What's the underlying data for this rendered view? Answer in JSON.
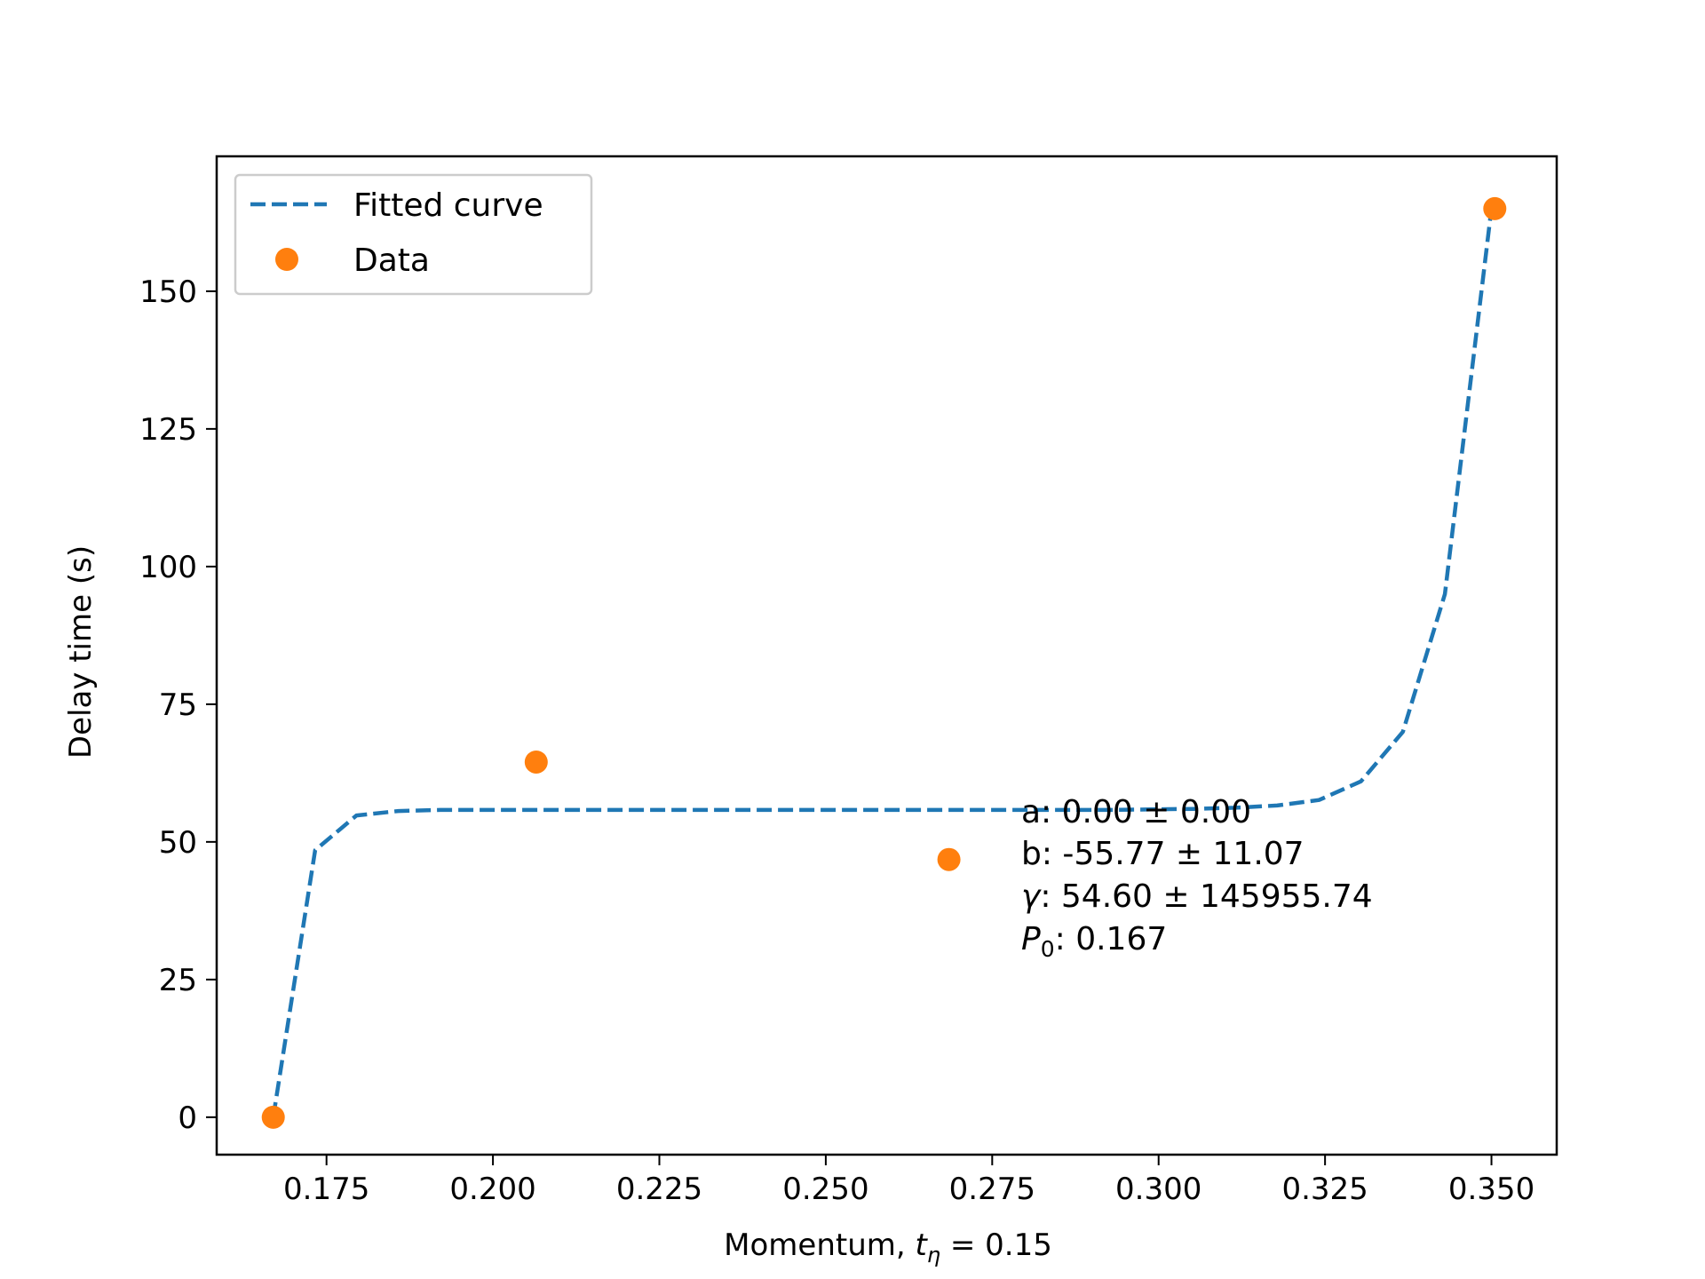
{
  "chart_data": {
    "type": "line",
    "title": "",
    "xlabel_prefix": "Momentum, ",
    "xlabel_var": "t",
    "xlabel_sub": "η",
    "xlabel_suffix": " = 0.15",
    "ylabel": "Delay time (s)",
    "xlim": [
      0.1585,
      0.3598
    ],
    "ylim": [
      -6.8,
      174.5
    ],
    "xticks": [
      0.175,
      0.2,
      0.225,
      0.25,
      0.275,
      0.3,
      0.325,
      0.35
    ],
    "xtick_labels": [
      "0.175",
      "0.200",
      "0.225",
      "0.250",
      "0.275",
      "0.300",
      "0.325",
      "0.350"
    ],
    "yticks": [
      0,
      25,
      50,
      75,
      100,
      125,
      150
    ],
    "ytick_labels": [
      "0",
      "25",
      "50",
      "75",
      "100",
      "125",
      "150"
    ],
    "grid": false,
    "legend_position": "top-left",
    "series": [
      {
        "name": "Fitted curve",
        "style": "dashed-line",
        "color": "#1f77b4",
        "x": [
          0.167,
          0.1733,
          0.1795,
          0.1858,
          0.1921,
          0.1984,
          0.2046,
          0.2109,
          0.2172,
          0.2235,
          0.2298,
          0.2361,
          0.2424,
          0.2487,
          0.2549,
          0.2612,
          0.2675,
          0.2738,
          0.2801,
          0.2864,
          0.2927,
          0.2989,
          0.3052,
          0.3115,
          0.3178,
          0.3241,
          0.3304,
          0.3367,
          0.343,
          0.35
        ],
        "y": [
          0,
          48.5,
          54.8,
          55.6,
          55.8,
          55.8,
          55.8,
          55.8,
          55.8,
          55.8,
          55.8,
          55.8,
          55.8,
          55.8,
          55.8,
          55.8,
          55.8,
          55.8,
          55.8,
          55.8,
          55.8,
          55.9,
          56.0,
          56.2,
          56.6,
          57.6,
          61.0,
          70.0,
          95.0,
          165.0
        ]
      },
      {
        "name": "Data",
        "style": "markers",
        "color": "#ff7f0e",
        "x": [
          0.167,
          0.2065,
          0.2685,
          0.3505
        ],
        "y": [
          0,
          64.5,
          46.8,
          165.0
        ]
      }
    ],
    "annotation_lines": [
      {
        "pre": "a: 0.00 ± 0.00",
        "sym": "",
        "sub": ""
      },
      {
        "pre": "b: -55.77 ± 11.07",
        "sym": "",
        "sub": ""
      },
      {
        "pre": "",
        "sym": "γ",
        "sub": "",
        "post": ": 54.60 ± 145955.74"
      },
      {
        "pre": "",
        "sym": "P",
        "sub": "0",
        "post": ": 0.167"
      }
    ]
  }
}
